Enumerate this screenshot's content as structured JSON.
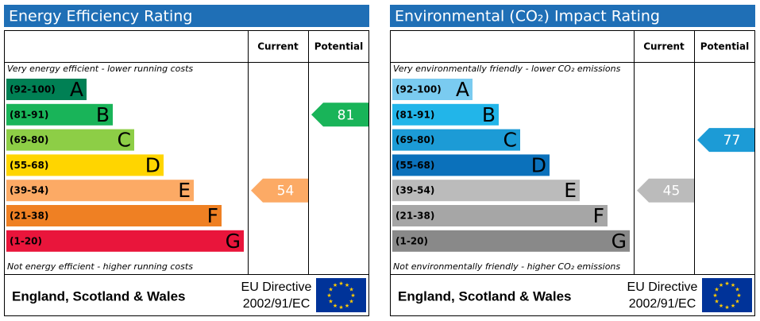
{
  "chart_data": [
    {
      "type": "rating",
      "title": "Energy Efficiency Rating",
      "columns": [
        "Current",
        "Potential"
      ],
      "top_note": "Very energy efficient - lower running costs",
      "bottom_note": "Not energy efficient - higher running costs",
      "bands": [
        {
          "range": "(92-100)",
          "letter": "A",
          "color": "#008054"
        },
        {
          "range": "(81-91)",
          "letter": "B",
          "color": "#19b459"
        },
        {
          "range": "(69-80)",
          "letter": "C",
          "color": "#8dce46"
        },
        {
          "range": "(55-68)",
          "letter": "D",
          "color": "#ffd500"
        },
        {
          "range": "(39-54)",
          "letter": "E",
          "color": "#fcaa65"
        },
        {
          "range": "(21-38)",
          "letter": "F",
          "color": "#ef8023"
        },
        {
          "range": "(1-20)",
          "letter": "G",
          "color": "#e9153b"
        }
      ],
      "current": 54,
      "potential": 81,
      "footer": {
        "region": "England, Scotland & Wales",
        "directive": "EU Directive",
        "code": "2002/91/EC"
      }
    },
    {
      "type": "rating",
      "title": "Environmental (CO₂) Impact Rating",
      "columns": [
        "Current",
        "Potential"
      ],
      "top_note": "Very environmentally friendly - lower CO₂ emissions",
      "bottom_note": "Not environmentally friendly - higher CO₂ emissions",
      "bands": [
        {
          "range": "(92-100)",
          "letter": "A",
          "color": "#7acbf0"
        },
        {
          "range": "(81-91)",
          "letter": "B",
          "color": "#22b5e9"
        },
        {
          "range": "(69-80)",
          "letter": "C",
          "color": "#1c9bd6"
        },
        {
          "range": "(55-68)",
          "letter": "D",
          "color": "#0b71bb"
        },
        {
          "range": "(39-54)",
          "letter": "E",
          "color": "#bbbbbb"
        },
        {
          "range": "(21-38)",
          "letter": "F",
          "color": "#a6a6a6"
        },
        {
          "range": "(1-20)",
          "letter": "G",
          "color": "#898989"
        }
      ],
      "current": 45,
      "potential": 77,
      "footer": {
        "region": "England, Scotland & Wales",
        "directive": "EU Directive",
        "code": "2002/91/EC"
      }
    }
  ]
}
